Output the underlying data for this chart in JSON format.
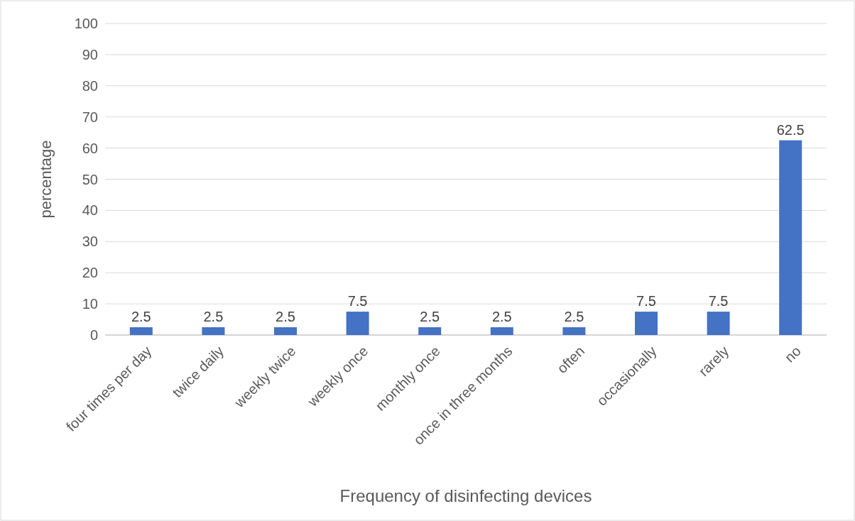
{
  "chart_data": {
    "type": "bar",
    "xlabel": "Frequency of disinfecting devices",
    "ylabel": "percentage",
    "categories": [
      "four times per day",
      "twice daily",
      "weekly twice",
      "weekly once",
      "monthly once",
      "once in three months",
      "often",
      "occasionally",
      "rarely",
      "no"
    ],
    "values": [
      2.5,
      2.5,
      2.5,
      7.5,
      2.5,
      2.5,
      2.5,
      7.5,
      7.5,
      62.5
    ],
    "color": "#4472c4",
    "ylim": [
      0,
      100
    ],
    "yticks": [
      0,
      10,
      20,
      30,
      40,
      50,
      60,
      70,
      80,
      90,
      100
    ],
    "grid": "y",
    "data_labels": true
  }
}
